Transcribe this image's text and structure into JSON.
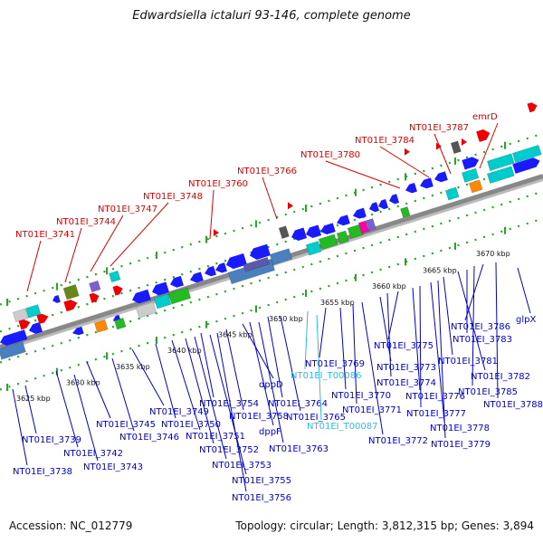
{
  "title": "Edwardsiella ictaluri 93-146, complete genome",
  "footer": {
    "accession": "Accession: NC_012779",
    "stats": "Topology: circular; Length: 3,812,315 bp; Genes: 3,894"
  },
  "colors": {
    "backbone": "#888888",
    "forward_gene": "#1a1aff",
    "label_above": "#dd0000",
    "label_below": "#0000cc",
    "label_rna": "#33bbdd",
    "tick": "#22aa22"
  },
  "kbp_ticks": [
    "3625 kbp",
    "3630 kbp",
    "3635 kbp",
    "3640 kbp",
    "3645 kbp",
    "3650 kbp",
    "3655 kbp",
    "3660 kbp",
    "3665 kbp",
    "3670 kbp"
  ],
  "labels_above": [
    "NT01EI_3741",
    "NT01EI_3744",
    "NT01EI_3747",
    "NT01EI_3748",
    "NT01EI_3760",
    "NT01EI_3766",
    "NT01EI_3780",
    "NT01EI_3784",
    "NT01EI_3787",
    "emrD"
  ],
  "labels_below": [
    "NT01EI_3738",
    "NT01EI_3739",
    "NT01EI_3742",
    "NT01EI_3743",
    "NT01EI_3745",
    "NT01EI_3746",
    "NT01EI_3749",
    "NT01EI_3750",
    "NT01EI_3751",
    "NT01EI_3752",
    "NT01EI_3753",
    "NT01EI_3754",
    "NT01EI_3755",
    "NT01EI_3756",
    "NT01EI_3758",
    "dppD",
    "dppF",
    "NT01EI_3763",
    "NT01EI_3764",
    "NT01EI_3765",
    "NT01EI_T00086",
    "NT01EI_T00087",
    "NT01EI_3769",
    "NT01EI_3770",
    "NT01EI_3771",
    "NT01EI_3772",
    "NT01EI_3773",
    "NT01EI_3774",
    "NT01EI_3775",
    "NT01EI_3776",
    "NT01EI_3777",
    "NT01EI_3778",
    "NT01EI_3779",
    "NT01EI_3781",
    "NT01EI_3782",
    "NT01EI_3783",
    "NT01EI_3785",
    "NT01EI_3786",
    "NT01EI_3788",
    "glpX"
  ]
}
